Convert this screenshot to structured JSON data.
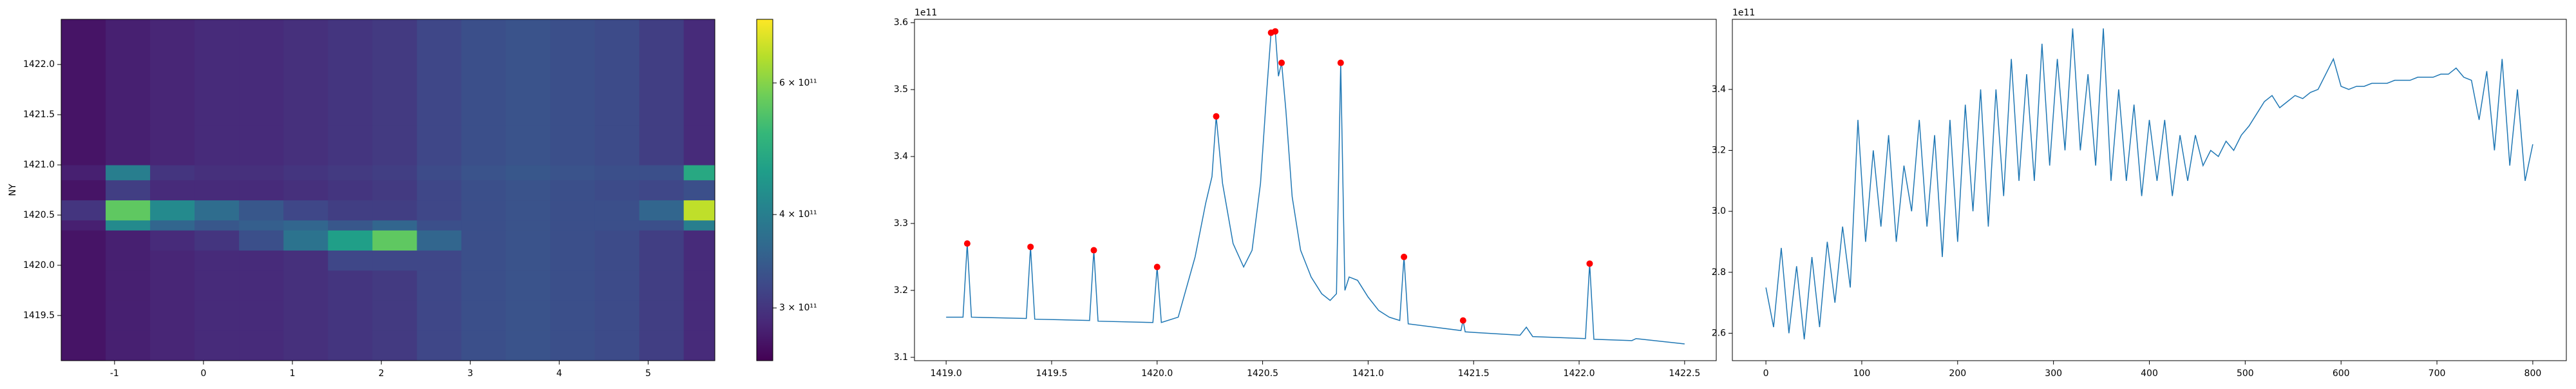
{
  "chart_data": [
    {
      "type": "heatmap",
      "ylabel": "NY",
      "x_edges": [
        -1.6,
        -1.1,
        -0.6,
        -0.1,
        0.4,
        0.9,
        1.4,
        1.9,
        2.4,
        2.9,
        3.4,
        3.9,
        4.4,
        4.9,
        5.4,
        5.75
      ],
      "y_edges": [
        1419.05,
        1419.35,
        1419.65,
        1419.95,
        1420.15,
        1420.35,
        1420.45,
        1420.65,
        1420.85,
        1421.0,
        1421.4,
        1421.9,
        1422.45
      ],
      "z": [
        [
          2.7,
          2.8,
          2.85,
          2.9,
          2.9,
          2.95,
          3.0,
          3.05,
          3.2,
          3.3,
          3.35,
          3.3,
          3.25,
          3.1,
          2.9
        ],
        [
          2.7,
          2.8,
          2.85,
          2.9,
          2.9,
          2.95,
          3.0,
          3.05,
          3.2,
          3.3,
          3.35,
          3.3,
          3.25,
          3.1,
          2.9
        ],
        [
          2.7,
          2.8,
          2.85,
          2.9,
          2.9,
          2.95,
          3.0,
          3.05,
          3.2,
          3.3,
          3.35,
          3.3,
          3.25,
          3.1,
          2.9
        ],
        [
          2.7,
          2.8,
          2.85,
          2.9,
          2.9,
          2.95,
          3.2,
          3.2,
          3.2,
          3.3,
          3.35,
          3.3,
          3.25,
          3.1,
          2.9
        ],
        [
          2.7,
          2.8,
          2.9,
          3.0,
          3.3,
          3.8,
          4.6,
          5.6,
          3.6,
          3.3,
          3.35,
          3.3,
          3.25,
          3.1,
          2.9
        ],
        [
          2.8,
          4.2,
          3.6,
          3.4,
          3.5,
          3.6,
          3.4,
          3.6,
          3.3,
          3.3,
          3.35,
          3.3,
          3.3,
          3.3,
          4.0
        ],
        [
          3.0,
          5.6,
          4.2,
          3.7,
          3.4,
          3.2,
          3.1,
          3.1,
          3.2,
          3.3,
          3.35,
          3.3,
          3.3,
          3.6,
          6.6
        ],
        [
          2.7,
          3.1,
          2.9,
          2.9,
          2.9,
          2.95,
          3.0,
          3.05,
          3.2,
          3.3,
          3.35,
          3.3,
          3.25,
          3.2,
          3.3
        ],
        [
          2.8,
          4.0,
          3.0,
          2.95,
          2.95,
          3.0,
          3.05,
          3.1,
          3.25,
          3.35,
          3.4,
          3.35,
          3.3,
          3.3,
          4.8
        ],
        [
          2.7,
          2.8,
          2.85,
          2.9,
          2.9,
          2.95,
          3.0,
          3.05,
          3.2,
          3.3,
          3.35,
          3.3,
          3.25,
          3.1,
          2.9
        ],
        [
          2.7,
          2.8,
          2.85,
          2.9,
          2.9,
          2.95,
          3.0,
          3.05,
          3.2,
          3.3,
          3.35,
          3.3,
          3.25,
          3.1,
          2.9
        ],
        [
          2.7,
          2.8,
          2.85,
          2.9,
          2.9,
          2.95,
          3.0,
          3.05,
          3.2,
          3.3,
          3.35,
          3.3,
          3.25,
          3.1,
          2.9
        ]
      ],
      "xlim": [
        -1.6,
        5.75
      ],
      "xticks": [
        -1,
        0,
        1,
        2,
        3,
        4,
        5
      ],
      "ylim": [
        1419.05,
        1422.45
      ],
      "yticks": [
        {
          "value": 1419.5,
          "label": "1419.5"
        },
        {
          "value": 1420,
          "label": "1420.0"
        },
        {
          "value": 1420.5,
          "label": "1420.5"
        },
        {
          "value": 1421,
          "label": "1421.0"
        },
        {
          "value": 1421.5,
          "label": "1421.5"
        },
        {
          "value": 1422,
          "label": "1422.0"
        }
      ],
      "clim": [
        2.55,
        7.3
      ],
      "log_color": true,
      "colormap_colors": [
        "#440154",
        "#482878",
        "#3e4989",
        "#31688e",
        "#26828e",
        "#1f9e89",
        "#35b779",
        "#6ece58",
        "#b5de2b",
        "#fde725"
      ],
      "colorbar_ticks": [
        {
          "value": 3,
          "label": "3 × 10¹¹"
        },
        {
          "value": 4,
          "label": "4 × 10¹¹"
        },
        {
          "value": 6,
          "label": "6 × 10¹¹"
        }
      ]
    },
    {
      "type": "line",
      "offset_label": "1e11",
      "color": "#1f77b4",
      "x": [
        1419.0,
        1419.08,
        1419.1,
        1419.12,
        1419.38,
        1419.4,
        1419.42,
        1419.68,
        1419.7,
        1419.72,
        1419.98,
        1420.0,
        1420.02,
        1420.1,
        1420.18,
        1420.23,
        1420.26,
        1420.28,
        1420.31,
        1420.36,
        1420.41,
        1420.45,
        1420.49,
        1420.52,
        1420.54,
        1420.56,
        1420.575,
        1420.59,
        1420.61,
        1420.64,
        1420.68,
        1420.73,
        1420.78,
        1420.82,
        1420.85,
        1420.87,
        1420.89,
        1420.91,
        1420.95,
        1421.0,
        1421.05,
        1421.1,
        1421.15,
        1421.17,
        1421.19,
        1421.44,
        1421.45,
        1421.46,
        1421.72,
        1421.75,
        1421.78,
        1422.03,
        1422.05,
        1422.07,
        1422.25,
        1422.27,
        1422.5
      ],
      "values": [
        3.16,
        3.16,
        3.27,
        3.16,
        3.158,
        3.265,
        3.157,
        3.155,
        3.26,
        3.154,
        3.152,
        3.235,
        3.152,
        3.16,
        3.25,
        3.33,
        3.37,
        3.46,
        3.36,
        3.27,
        3.235,
        3.26,
        3.36,
        3.5,
        3.585,
        3.587,
        3.52,
        3.54,
        3.47,
        3.34,
        3.26,
        3.22,
        3.195,
        3.185,
        3.195,
        3.54,
        3.2,
        3.22,
        3.215,
        3.19,
        3.17,
        3.16,
        3.155,
        3.25,
        3.15,
        3.14,
        3.155,
        3.138,
        3.133,
        3.145,
        3.131,
        3.128,
        3.24,
        3.127,
        3.125,
        3.128,
        3.12
      ],
      "markers": {
        "color": "#ff0000",
        "x": [
          1419.1,
          1419.4,
          1419.7,
          1420.0,
          1420.28,
          1420.54,
          1420.56,
          1420.59,
          1420.87,
          1421.17,
          1421.45,
          1422.05
        ],
        "values": [
          3.27,
          3.265,
          3.26,
          3.235,
          3.46,
          3.585,
          3.587,
          3.54,
          3.54,
          3.25,
          3.155,
          3.24
        ]
      },
      "xlim": [
        1418.85,
        1422.65
      ],
      "xticks": [
        {
          "value": 1419,
          "label": "1419.0"
        },
        1419.5,
        {
          "value": 1420,
          "label": "1420.0"
        },
        1420.5,
        {
          "value": 1421,
          "label": "1421.0"
        },
        1421.5,
        {
          "value": 1422,
          "label": "1422.0"
        },
        1422.5
      ],
      "ylim": [
        3.095,
        3.605
      ],
      "yticks": [
        3.1,
        3.2,
        3.3,
        3.4,
        3.5,
        3.6
      ]
    },
    {
      "type": "line",
      "offset_label": "1e11",
      "color": "#1f77b4",
      "x": [
        0,
        8,
        16,
        24,
        32,
        40,
        48,
        56,
        64,
        72,
        80,
        88,
        96,
        104,
        112,
        120,
        128,
        136,
        144,
        152,
        160,
        168,
        176,
        184,
        192,
        200,
        208,
        216,
        224,
        232,
        240,
        248,
        256,
        264,
        272,
        280,
        288,
        296,
        304,
        312,
        320,
        328,
        336,
        344,
        352,
        360,
        368,
        376,
        384,
        392,
        400,
        408,
        416,
        424,
        432,
        440,
        448,
        456,
        464,
        472,
        480,
        488,
        496,
        504,
        512,
        520,
        528,
        536,
        544,
        552,
        560,
        568,
        576,
        584,
        592,
        600,
        608,
        616,
        624,
        632,
        640,
        648,
        656,
        664,
        672,
        680,
        688,
        696,
        704,
        712,
        720,
        728,
        736,
        744,
        752,
        760,
        768,
        776,
        784,
        792,
        800
      ],
      "values": [
        2.75,
        2.62,
        2.88,
        2.6,
        2.82,
        2.58,
        2.85,
        2.62,
        2.9,
        2.7,
        2.95,
        2.75,
        3.3,
        2.9,
        3.2,
        2.95,
        3.25,
        2.9,
        3.15,
        3.0,
        3.3,
        2.95,
        3.25,
        2.85,
        3.3,
        2.9,
        3.35,
        3.0,
        3.4,
        2.95,
        3.4,
        3.05,
        3.5,
        3.1,
        3.45,
        3.1,
        3.55,
        3.15,
        3.5,
        3.2,
        3.6,
        3.2,
        3.45,
        3.15,
        3.6,
        3.1,
        3.4,
        3.1,
        3.35,
        3.05,
        3.3,
        3.1,
        3.3,
        3.05,
        3.25,
        3.1,
        3.25,
        3.15,
        3.2,
        3.18,
        3.23,
        3.2,
        3.25,
        3.28,
        3.32,
        3.36,
        3.38,
        3.34,
        3.36,
        3.38,
        3.37,
        3.39,
        3.4,
        3.45,
        3.5,
        3.41,
        3.4,
        3.41,
        3.41,
        3.42,
        3.42,
        3.42,
        3.43,
        3.43,
        3.43,
        3.44,
        3.44,
        3.44,
        3.45,
        3.45,
        3.47,
        3.44,
        3.43,
        3.3,
        3.46,
        3.2,
        3.5,
        3.15,
        3.4,
        3.1,
        3.22
      ],
      "xlim": [
        -35,
        835
      ],
      "xticks": [
        0,
        100,
        200,
        300,
        400,
        500,
        600,
        700,
        800
      ],
      "ylim": [
        2.51,
        3.63
      ],
      "yticks": [
        2.6,
        2.8,
        {
          "value": 3,
          "label": "3.0"
        },
        3.2,
        3.4
      ]
    }
  ]
}
